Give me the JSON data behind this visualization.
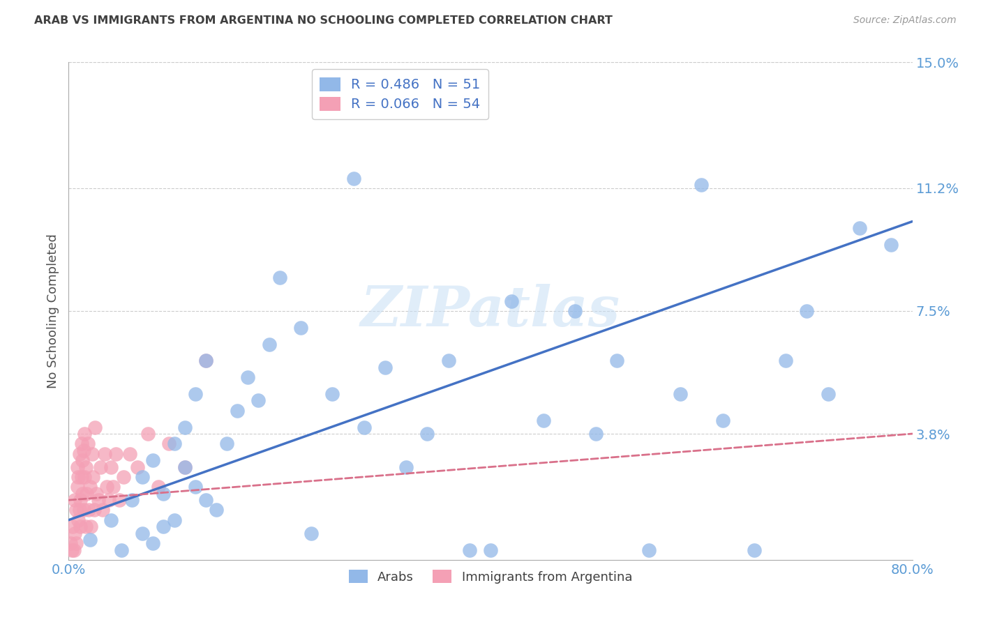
{
  "title": "ARAB VS IMMIGRANTS FROM ARGENTINA NO SCHOOLING COMPLETED CORRELATION CHART",
  "source": "Source: ZipAtlas.com",
  "ylabel_label": "No Schooling Completed",
  "xlim": [
    0.0,
    0.8
  ],
  "ylim": [
    0.0,
    0.15
  ],
  "ytick_vals": [
    0.0,
    0.038,
    0.075,
    0.112,
    0.15
  ],
  "ytick_labels": [
    "",
    "3.8%",
    "7.5%",
    "11.2%",
    "15.0%"
  ],
  "xtick_vals": [
    0.0,
    0.8
  ],
  "xtick_labels": [
    "0.0%",
    "80.0%"
  ],
  "legend_blue_R": "R = 0.486",
  "legend_blue_N": "N = 51",
  "legend_pink_R": "R = 0.066",
  "legend_pink_N": "N = 54",
  "watermark": "ZIPatlas",
  "blue_color": "#92b8e8",
  "pink_color": "#f4a0b5",
  "blue_line_color": "#4472c4",
  "pink_line_color": "#d9708a",
  "axis_label_color": "#5b9bd5",
  "title_color": "#404040",
  "blue_scatter_x": [
    0.02,
    0.04,
    0.05,
    0.06,
    0.07,
    0.07,
    0.08,
    0.08,
    0.09,
    0.09,
    0.1,
    0.1,
    0.11,
    0.11,
    0.12,
    0.12,
    0.13,
    0.13,
    0.14,
    0.15,
    0.16,
    0.17,
    0.18,
    0.19,
    0.2,
    0.22,
    0.23,
    0.25,
    0.27,
    0.28,
    0.3,
    0.32,
    0.34,
    0.36,
    0.38,
    0.4,
    0.42,
    0.45,
    0.48,
    0.5,
    0.52,
    0.55,
    0.58,
    0.6,
    0.62,
    0.65,
    0.68,
    0.7,
    0.72,
    0.75,
    0.78
  ],
  "blue_scatter_y": [
    0.006,
    0.012,
    0.003,
    0.018,
    0.008,
    0.025,
    0.005,
    0.03,
    0.01,
    0.02,
    0.035,
    0.012,
    0.028,
    0.04,
    0.022,
    0.05,
    0.018,
    0.06,
    0.015,
    0.035,
    0.045,
    0.055,
    0.048,
    0.065,
    0.085,
    0.07,
    0.008,
    0.05,
    0.115,
    0.04,
    0.058,
    0.028,
    0.038,
    0.06,
    0.003,
    0.003,
    0.078,
    0.042,
    0.075,
    0.038,
    0.06,
    0.003,
    0.05,
    0.113,
    0.042,
    0.003,
    0.06,
    0.075,
    0.05,
    0.1,
    0.095
  ],
  "pink_scatter_x": [
    0.002,
    0.003,
    0.004,
    0.005,
    0.006,
    0.006,
    0.007,
    0.007,
    0.008,
    0.008,
    0.009,
    0.009,
    0.01,
    0.01,
    0.011,
    0.011,
    0.012,
    0.012,
    0.013,
    0.013,
    0.014,
    0.014,
    0.015,
    0.015,
    0.016,
    0.016,
    0.017,
    0.018,
    0.019,
    0.02,
    0.021,
    0.022,
    0.023,
    0.024,
    0.025,
    0.026,
    0.028,
    0.03,
    0.032,
    0.034,
    0.036,
    0.038,
    0.04,
    0.042,
    0.045,
    0.048,
    0.052,
    0.058,
    0.065,
    0.075,
    0.085,
    0.095,
    0.11,
    0.13
  ],
  "pink_scatter_y": [
    0.005,
    0.003,
    0.01,
    0.003,
    0.008,
    0.018,
    0.005,
    0.015,
    0.022,
    0.028,
    0.012,
    0.025,
    0.015,
    0.032,
    0.018,
    0.01,
    0.025,
    0.035,
    0.02,
    0.03,
    0.033,
    0.015,
    0.038,
    0.025,
    0.01,
    0.028,
    0.02,
    0.035,
    0.015,
    0.022,
    0.01,
    0.032,
    0.025,
    0.015,
    0.04,
    0.02,
    0.018,
    0.028,
    0.015,
    0.032,
    0.022,
    0.018,
    0.028,
    0.022,
    0.032,
    0.018,
    0.025,
    0.032,
    0.028,
    0.038,
    0.022,
    0.035,
    0.028,
    0.06
  ],
  "blue_line_x": [
    0.0,
    0.8
  ],
  "blue_line_y_start": 0.012,
  "blue_line_y_end": 0.102,
  "pink_line_x": [
    0.0,
    0.8
  ],
  "pink_line_y_start": 0.018,
  "pink_line_y_end": 0.038
}
